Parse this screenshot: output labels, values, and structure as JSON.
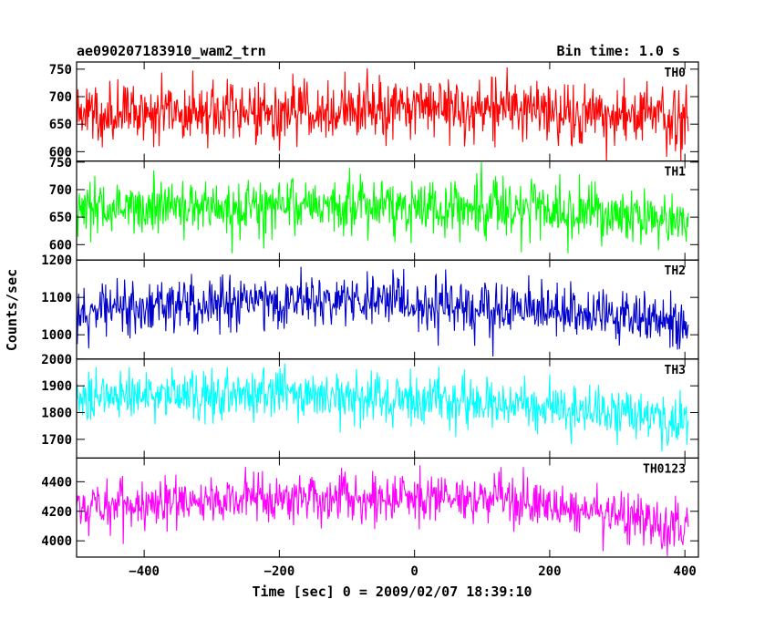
{
  "chart_data": {
    "type": "line",
    "title": "ae090207183910_wam2_trn",
    "subtitle": "Bin time: 1.0 s",
    "xlabel": "Time [sec] 0 = 2009/02/07 18:39:10",
    "ylabel": "Counts/sec",
    "xlim": [
      -500,
      420
    ],
    "x_ticks": [
      -400,
      -200,
      0,
      200,
      400
    ],
    "x_tick_labels": [
      "−400",
      "−200",
      "0",
      "200",
      "400"
    ],
    "x_range": [
      -500,
      405
    ],
    "grid": false,
    "panels": [
      {
        "label": "TH0",
        "color": "#ff0000",
        "ylim": [
          583,
          763
        ],
        "yticks": [
          600,
          650,
          700,
          750
        ],
        "trend": [
          [
            -500,
            670
          ],
          [
            -300,
            675
          ],
          [
            -100,
            680
          ],
          [
            100,
            678
          ],
          [
            300,
            668
          ],
          [
            405,
            660
          ]
        ],
        "noise_sd": 28
      },
      {
        "label": "TH1",
        "color": "#00ff00",
        "ylim": [
          572,
          752
        ],
        "yticks": [
          600,
          650,
          700,
          750
        ],
        "trend": [
          [
            -500,
            665
          ],
          [
            -300,
            668
          ],
          [
            -100,
            672
          ],
          [
            100,
            668
          ],
          [
            300,
            650
          ],
          [
            405,
            640
          ]
        ],
        "noise_sd": 25
      },
      {
        "label": "TH2",
        "color": "#0000cc",
        "ylim": [
          935,
          1200
        ],
        "yticks": [
          1000,
          1100,
          1200
        ],
        "trend": [
          [
            -500,
            1070
          ],
          [
            -300,
            1080
          ],
          [
            -100,
            1090
          ],
          [
            100,
            1075
          ],
          [
            300,
            1050
          ],
          [
            405,
            1035
          ]
        ],
        "noise_sd": 35
      },
      {
        "label": "TH3",
        "color": "#00ffff",
        "ylim": [
          1630,
          2000
        ],
        "yticks": [
          1700,
          1800,
          1900,
          2000
        ],
        "trend": [
          [
            -500,
            1860
          ],
          [
            -300,
            1870
          ],
          [
            -100,
            1860
          ],
          [
            100,
            1840
          ],
          [
            300,
            1800
          ],
          [
            405,
            1760
          ]
        ],
        "noise_sd": 45
      },
      {
        "label": "TH0123",
        "color": "#ff00ff",
        "ylim": [
          3890,
          4560
        ],
        "yticks": [
          4000,
          4200,
          4400
        ],
        "trend": [
          [
            -500,
            4230
          ],
          [
            -300,
            4280
          ],
          [
            -100,
            4300
          ],
          [
            100,
            4290
          ],
          [
            300,
            4180
          ],
          [
            405,
            4080
          ]
        ],
        "noise_sd": 80
      }
    ]
  }
}
